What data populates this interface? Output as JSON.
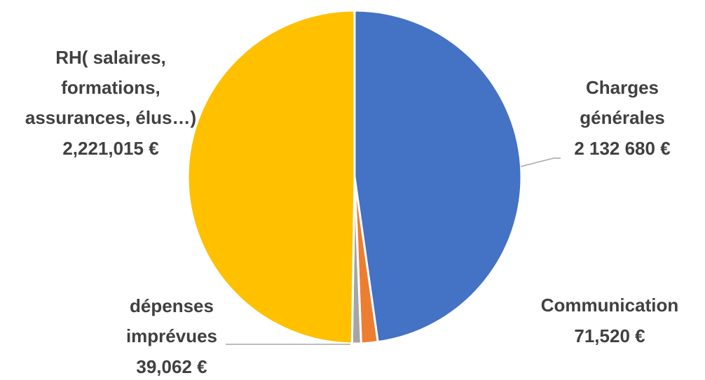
{
  "chart_data": {
    "type": "pie",
    "title": "",
    "slices": [
      {
        "label_lines": [
          "Charges",
          "générales"
        ],
        "value_text": "2 132 680 €",
        "value": 2132680,
        "color": "#4472C4"
      },
      {
        "label_lines": [
          "Communication"
        ],
        "value_text": "71,520 €",
        "value": 71520,
        "color": "#ED7D31"
      },
      {
        "label_lines": [
          "dépenses",
          "imprévues"
        ],
        "value_text": "39,062 €",
        "value": 39062,
        "color": "#A5A5A5"
      },
      {
        "label_lines": [
          "RH( salaires,",
          "formations,",
          "assurances, élus…)"
        ],
        "value_text": "2,221,015 €",
        "value": 2221015,
        "color": "#FFC000"
      }
    ],
    "start_angle_deg": 0,
    "direction": "clockwise",
    "legend": "none",
    "labels": "outside"
  }
}
